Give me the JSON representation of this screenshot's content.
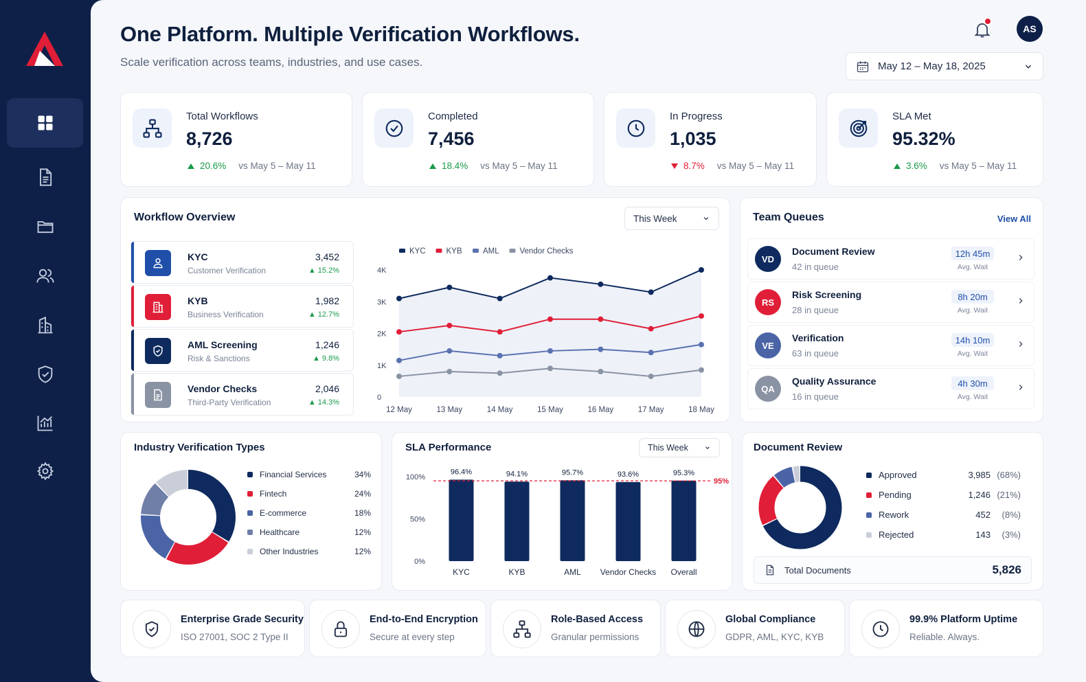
{
  "header": {
    "title": "One Platform. Multiple Verification Workflows.",
    "subtitle": "Scale verification across teams, industries, and use cases.",
    "avatar_initials": "AS",
    "date_range": "May 12 – May 18, 2025"
  },
  "sidebar": {
    "items": [
      {
        "icon": "dashboard-grid-icon",
        "active": true
      },
      {
        "icon": "document-icon"
      },
      {
        "icon": "folder-icon"
      },
      {
        "icon": "users-icon"
      },
      {
        "icon": "building-icon"
      },
      {
        "icon": "shield-check-icon"
      },
      {
        "icon": "analytics-chart-icon"
      },
      {
        "icon": "settings-gear-icon"
      }
    ]
  },
  "kpis": [
    {
      "label": "Total Workflows",
      "value": "8,726",
      "delta": "20.6%",
      "direction": "up",
      "compare": "vs May 5 – May 11",
      "icon": "workflow-hierarchy-icon"
    },
    {
      "label": "Completed",
      "value": "7,456",
      "delta": "18.4%",
      "direction": "up",
      "compare": "vs May 5 – May 11",
      "icon": "check-circle-icon"
    },
    {
      "label": "In Progress",
      "value": "1,035",
      "delta": "8.7%",
      "direction": "down",
      "compare": "vs May 5 – May 11",
      "icon": "clock-icon"
    },
    {
      "label": "SLA Met",
      "value": "95.32%",
      "delta": "3.6%",
      "direction": "up",
      "compare": "vs May 5 – May 11",
      "icon": "target-icon"
    }
  ],
  "workflow_overview": {
    "title": "Workflow Overview",
    "filter": "This Week",
    "items": [
      {
        "name": "KYC",
        "desc": "Customer Verification",
        "value": "3,452",
        "pct": "15.2%",
        "color": "#1f4fa8"
      },
      {
        "name": "KYB",
        "desc": "Business Verification",
        "value": "1,982",
        "pct": "12.7%",
        "color": "#e01e37"
      },
      {
        "name": "AML Screening",
        "desc": "Risk & Sanctions",
        "value": "1,246",
        "pct": "9.8%",
        "color": "#0e2a5e"
      },
      {
        "name": "Vendor Checks",
        "desc": "Third-Party Verification",
        "value": "2,046",
        "pct": "14.3%",
        "color": "#8a93a3"
      }
    ]
  },
  "team_queues": {
    "title": "Team Queues",
    "view_all": "View All",
    "items": [
      {
        "initials": "VD",
        "name": "Document Review",
        "sub": "42 in queue",
        "wait": "12h 45m",
        "avg": "Avg. Wait",
        "color": "#0e2a5e"
      },
      {
        "initials": "RS",
        "name": "Risk Screening",
        "sub": "28 in queue",
        "wait": "8h 20m",
        "avg": "Avg. Wait",
        "color": "#e01e37"
      },
      {
        "initials": "VE",
        "name": "Verification",
        "sub": "63 in queue",
        "wait": "14h 10m",
        "avg": "Avg. Wait",
        "color": "#4a64a6"
      },
      {
        "initials": "QA",
        "name": "Quality Assurance",
        "sub": "16 in queue",
        "wait": "4h 30m",
        "avg": "Avg. Wait",
        "color": "#8a93a3"
      }
    ]
  },
  "industry": {
    "title": "Industry Verification Types",
    "items": [
      {
        "label": "Financial Services",
        "pct": "34%"
      },
      {
        "label": "Fintech",
        "pct": "24%"
      },
      {
        "label": "E-commerce",
        "pct": "18%"
      },
      {
        "label": "Healthcare",
        "pct": "12%"
      },
      {
        "label": "Other Industries",
        "pct": "12%"
      }
    ]
  },
  "sla": {
    "title": "SLA Performance",
    "filter": "This Week"
  },
  "document_review": {
    "title": "Document Review",
    "items": [
      {
        "label": "Approved",
        "value": "3,985",
        "pct": "(68%)"
      },
      {
        "label": "Pending",
        "value": "1,246",
        "pct": "(21%)"
      },
      {
        "label": "Rework",
        "value": "452",
        "pct": "(8%)"
      },
      {
        "label": "Rejected",
        "value": "143",
        "pct": "(3%)"
      }
    ],
    "total_label": "Total Documents",
    "total_value": "5,826"
  },
  "features": [
    {
      "title": "Enterprise Grade Security",
      "sub": "ISO 27001, SOC 2 Type II",
      "icon": "shield-check-icon"
    },
    {
      "title": "End-to-End Encryption",
      "sub": "Secure at every step",
      "icon": "lock-icon"
    },
    {
      "title": "Role-Based Access",
      "sub": "Granular permissions",
      "icon": "hierarchy-icon"
    },
    {
      "title": "Global Compliance",
      "sub": "GDPR, AML, KYC, KYB",
      "icon": "globe-icon"
    },
    {
      "title": "99.9% Platform Uptime",
      "sub": "Reliable. Always.",
      "icon": "clock-icon"
    }
  ],
  "colors": {
    "navy": "#0e2a5e",
    "red": "#e01e37",
    "blue": "#4a64a6",
    "gray": "#8a93a3",
    "light": "#c9ced8",
    "green": "#1a9a4a"
  },
  "chart_data": [
    {
      "type": "line",
      "x": [
        "12 May",
        "13 May",
        "14 May",
        "15 May",
        "16 May",
        "17 May",
        "18 May"
      ],
      "ylim": [
        0,
        4000
      ],
      "yticks": [
        "0",
        "1K",
        "2K",
        "3K",
        "4K"
      ],
      "series": [
        {
          "name": "KYC",
          "color": "#0e2a5e",
          "values": [
            3100,
            3450,
            3100,
            3750,
            3550,
            3300,
            4000
          ]
        },
        {
          "name": "KYB",
          "color": "#e01e37",
          "values": [
            2050,
            2250,
            2050,
            2450,
            2450,
            2150,
            2550
          ]
        },
        {
          "name": "AML",
          "color": "#5b72b0",
          "values": [
            1150,
            1450,
            1300,
            1450,
            1500,
            1400,
            1650
          ]
        },
        {
          "name": "Vendor Checks",
          "color": "#8a93a3",
          "values": [
            650,
            800,
            750,
            900,
            800,
            650,
            850
          ]
        }
      ]
    },
    {
      "type": "bar",
      "categories": [
        "KYC",
        "KYB",
        "AML",
        "Vendor Checks",
        "Overall"
      ],
      "values": [
        96.4,
        94.1,
        95.7,
        93.6,
        95.3
      ],
      "labels": [
        "96.4%",
        "94.1%",
        "95.7%",
        "93.6%",
        "95.3%"
      ],
      "ylim": [
        0,
        100
      ],
      "yticks": [
        "0%",
        "50%",
        "100%"
      ],
      "target": 95,
      "target_label": "95%"
    },
    {
      "type": "pie",
      "labels": [
        "Financial Services",
        "Fintech",
        "E-commerce",
        "Healthcare",
        "Other Industries"
      ],
      "values": [
        34,
        24,
        18,
        12,
        12
      ],
      "colors": [
        "#0e2a5e",
        "#e01e37",
        "#4a64a6",
        "#6f7fa8",
        "#c9ced8"
      ]
    },
    {
      "type": "pie",
      "labels": [
        "Approved",
        "Pending",
        "Rework",
        "Rejected"
      ],
      "values": [
        68,
        21,
        8,
        3
      ],
      "colors": [
        "#0e2a5e",
        "#e01e37",
        "#4a64a6",
        "#c9ced8"
      ]
    }
  ]
}
